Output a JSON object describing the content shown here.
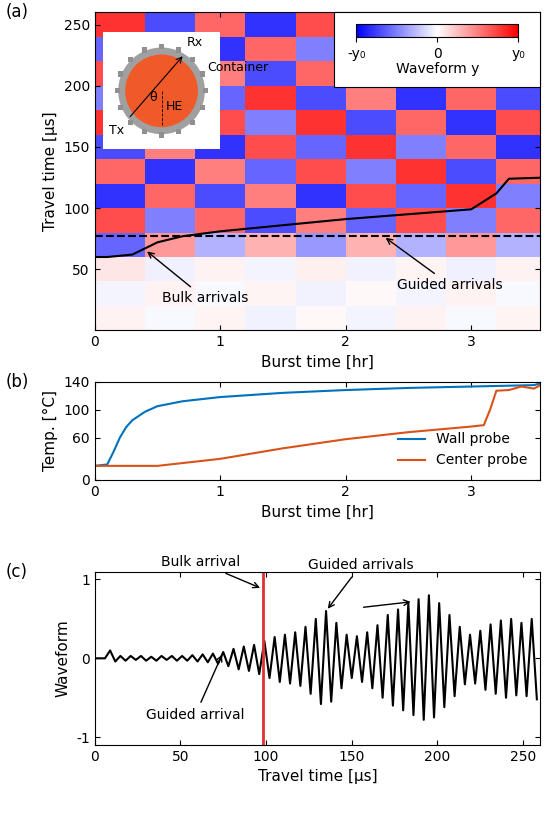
{
  "chart_data": [
    {
      "type": "heatmap",
      "title": "(a)",
      "x_label": "Burst time [hr]",
      "y_label": "Travel time [µs]",
      "xlim": [
        0,
        3.55
      ],
      "ylim": [
        0,
        260
      ],
      "xticks": [
        0,
        1,
        2,
        3
      ],
      "yticks": [
        50,
        100,
        150,
        200,
        250
      ],
      "x_edges": [
        0,
        0.4,
        0.8,
        1.2,
        1.6,
        2.0,
        2.4,
        2.8,
        3.2,
        3.6
      ],
      "y_edges": [
        0,
        20,
        40,
        60,
        80,
        100,
        120,
        140,
        160,
        180,
        200,
        220,
        240,
        260
      ],
      "cells": [
        [
          0.05,
          -0.03,
          0.04,
          -0.05,
          0.03,
          -0.04,
          0.05,
          -0.03,
          0.04
        ],
        [
          -0.04,
          0.05,
          -0.03,
          0.04,
          -0.05,
          0.03,
          -0.04,
          0.05,
          -0.03
        ],
        [
          0.1,
          -0.06,
          0.05,
          -0.04,
          0.06,
          -0.05,
          0.04,
          -0.06,
          0.05
        ],
        [
          -0.6,
          0.4,
          -0.3,
          0.3,
          -0.4,
          0.3,
          -0.3,
          0.4,
          -0.3
        ],
        [
          0.7,
          -0.5,
          0.6,
          -0.7,
          0.5,
          -0.6,
          0.7,
          -0.5,
          0.6
        ],
        [
          -0.8,
          0.6,
          -0.7,
          0.5,
          -0.8,
          0.7,
          -0.6,
          0.8,
          -0.5
        ],
        [
          0.6,
          -0.8,
          0.5,
          -0.6,
          0.7,
          -0.5,
          0.8,
          -0.7,
          0.6
        ],
        [
          -0.7,
          0.5,
          -0.8,
          0.7,
          -0.6,
          0.8,
          -0.5,
          0.6,
          -0.8
        ],
        [
          0.8,
          -0.6,
          0.7,
          -0.5,
          0.8,
          -0.7,
          0.6,
          -0.8,
          0.7
        ],
        [
          -0.5,
          0.7,
          -0.6,
          0.8,
          -0.7,
          0.5,
          -0.8,
          0.6,
          -0.7
        ],
        [
          0.7,
          -0.8,
          0.5,
          -0.7,
          0.6,
          -0.8,
          0.7,
          -0.5,
          0.8
        ],
        [
          -0.6,
          0.5,
          -0.8,
          0.6,
          -0.5,
          0.7,
          -0.6,
          0.8,
          -0.6
        ],
        [
          0.8,
          -0.7,
          0.6,
          -0.8,
          0.7,
          -0.6,
          0.5,
          -0.7,
          0.6
        ]
      ],
      "colorbar": {
        "label": "Waveform y",
        "range": [
          -1,
          1
        ],
        "ticks": [
          {
            "value": -1,
            "label": "-y₀"
          },
          0,
          {
            "value": 1,
            "label": "y₀"
          }
        ]
      },
      "series": [
        {
          "color": "#000000",
          "line_style": "solid",
          "x": [
            0,
            0.1,
            0.2,
            0.3,
            0.4,
            0.5,
            0.7,
            1.0,
            1.5,
            2.0,
            2.5,
            3.0,
            3.2,
            3.3,
            3.6
          ],
          "values": [
            60,
            60,
            61,
            62,
            67,
            72,
            77,
            81,
            86,
            91,
            95,
            99,
            112,
            124,
            125
          ]
        },
        {
          "color": "#000000",
          "line_style": "dashed",
          "x": [
            0,
            3.6
          ],
          "values": [
            77,
            77
          ]
        }
      ],
      "annotations": [
        {
          "text": "Bulk arrivals",
          "xy": [
            0.4,
            66
          ]
        },
        {
          "text": "Guided arrivals",
          "xy": [
            2.3,
            77
          ]
        }
      ],
      "inset": {
        "rx": "Rx",
        "tx": "Tx",
        "container": "Container",
        "he": "HE",
        "angle": "θ"
      }
    },
    {
      "type": "line",
      "title": "(b)",
      "x_label": "Burst time [hr]",
      "y_label": "Temp. [°C]",
      "xlim": [
        0,
        3.55
      ],
      "ylim": [
        0,
        140
      ],
      "xticks": [
        0,
        1,
        2,
        3
      ],
      "yticks": [
        0,
        60,
        100,
        140
      ],
      "legend": "lower right",
      "series": [
        {
          "name": "Wall probe",
          "color": "#0072bd",
          "x": [
            0,
            0.1,
            0.15,
            0.2,
            0.25,
            0.3,
            0.4,
            0.5,
            0.7,
            1.0,
            1.5,
            2.0,
            2.5,
            3.0,
            3.5,
            3.6
          ],
          "values": [
            20,
            22,
            40,
            60,
            75,
            85,
            97,
            105,
            112,
            118,
            124,
            128,
            131,
            133,
            135,
            140
          ]
        },
        {
          "name": "Center probe",
          "color": "#d95319",
          "x": [
            0,
            0.5,
            1.0,
            1.5,
            2.0,
            2.5,
            3.0,
            3.1,
            3.15,
            3.2,
            3.3,
            3.4,
            3.5,
            3.6
          ],
          "values": [
            20,
            20,
            30,
            45,
            58,
            68,
            76,
            78,
            100,
            127,
            128,
            133,
            130,
            140
          ]
        }
      ]
    },
    {
      "type": "line",
      "title": "(c)",
      "x_label": "Travel time [µs]",
      "y_label": "Waveform",
      "xlim": [
        0,
        260
      ],
      "ylim": [
        -1.1,
        1.1
      ],
      "xticks": [
        0,
        50,
        100,
        150,
        200,
        250
      ],
      "yticks": [
        -1,
        0,
        1
      ],
      "series": [
        {
          "color": "#000000",
          "line_style": "solid",
          "x": [
            0,
            3,
            6,
            9,
            12,
            15,
            18,
            21,
            24,
            27,
            30,
            33,
            36,
            39,
            42,
            45,
            48,
            51,
            54,
            57,
            60,
            63,
            66,
            69,
            72,
            75,
            78,
            81,
            84,
            87,
            90,
            93,
            96,
            99,
            102,
            105,
            108,
            111,
            114,
            117,
            120,
            123,
            126,
            129,
            132,
            135,
            138,
            141,
            144,
            147,
            150,
            153,
            156,
            159,
            162,
            165,
            168,
            171,
            174,
            177,
            180,
            183,
            186,
            189,
            192,
            195,
            198,
            201,
            204,
            207,
            210,
            213,
            216,
            219,
            222,
            225,
            228,
            231,
            234,
            237,
            240,
            243,
            246,
            249,
            252,
            255,
            258
          ],
          "values": [
            0,
            0,
            0,
            0.1,
            -0.04,
            0.03,
            -0.03,
            0.03,
            -0.02,
            0.03,
            -0.03,
            0.02,
            -0.03,
            0.03,
            -0.02,
            0.03,
            -0.03,
            0.03,
            -0.03,
            0.04,
            -0.04,
            0.05,
            -0.05,
            0.06,
            -0.07,
            0.08,
            -0.1,
            0.12,
            -0.14,
            0.15,
            -0.16,
            0.17,
            -0.2,
            0.22,
            -0.25,
            0.27,
            -0.3,
            0.3,
            -0.32,
            0.33,
            -0.35,
            0.4,
            -0.45,
            0.5,
            -0.58,
            0.6,
            -0.55,
            0.45,
            -0.38,
            0.3,
            -0.25,
            0.28,
            -0.3,
            0.33,
            -0.38,
            0.42,
            -0.5,
            0.55,
            -0.6,
            0.62,
            -0.66,
            0.7,
            -0.72,
            0.75,
            -0.78,
            0.8,
            -0.75,
            0.7,
            -0.62,
            0.55,
            -0.48,
            0.4,
            -0.33,
            0.3,
            -0.32,
            0.35,
            -0.4,
            0.43,
            -0.45,
            0.48,
            -0.5,
            0.5,
            -0.47,
            0.45,
            -0.48,
            0.5,
            -0.52
          ]
        }
      ],
      "vline": {
        "x": 98,
        "text": "Bulk arrival",
        "color": "#e03030"
      },
      "annotations": [
        {
          "text": "Guided arrival",
          "xy": [
            75,
            0.08
          ]
        },
        {
          "text": "Guided arrivals",
          "xy": [
            [
              135,
              0.6
            ],
            [
              186,
              0.72
            ]
          ]
        }
      ]
    }
  ]
}
